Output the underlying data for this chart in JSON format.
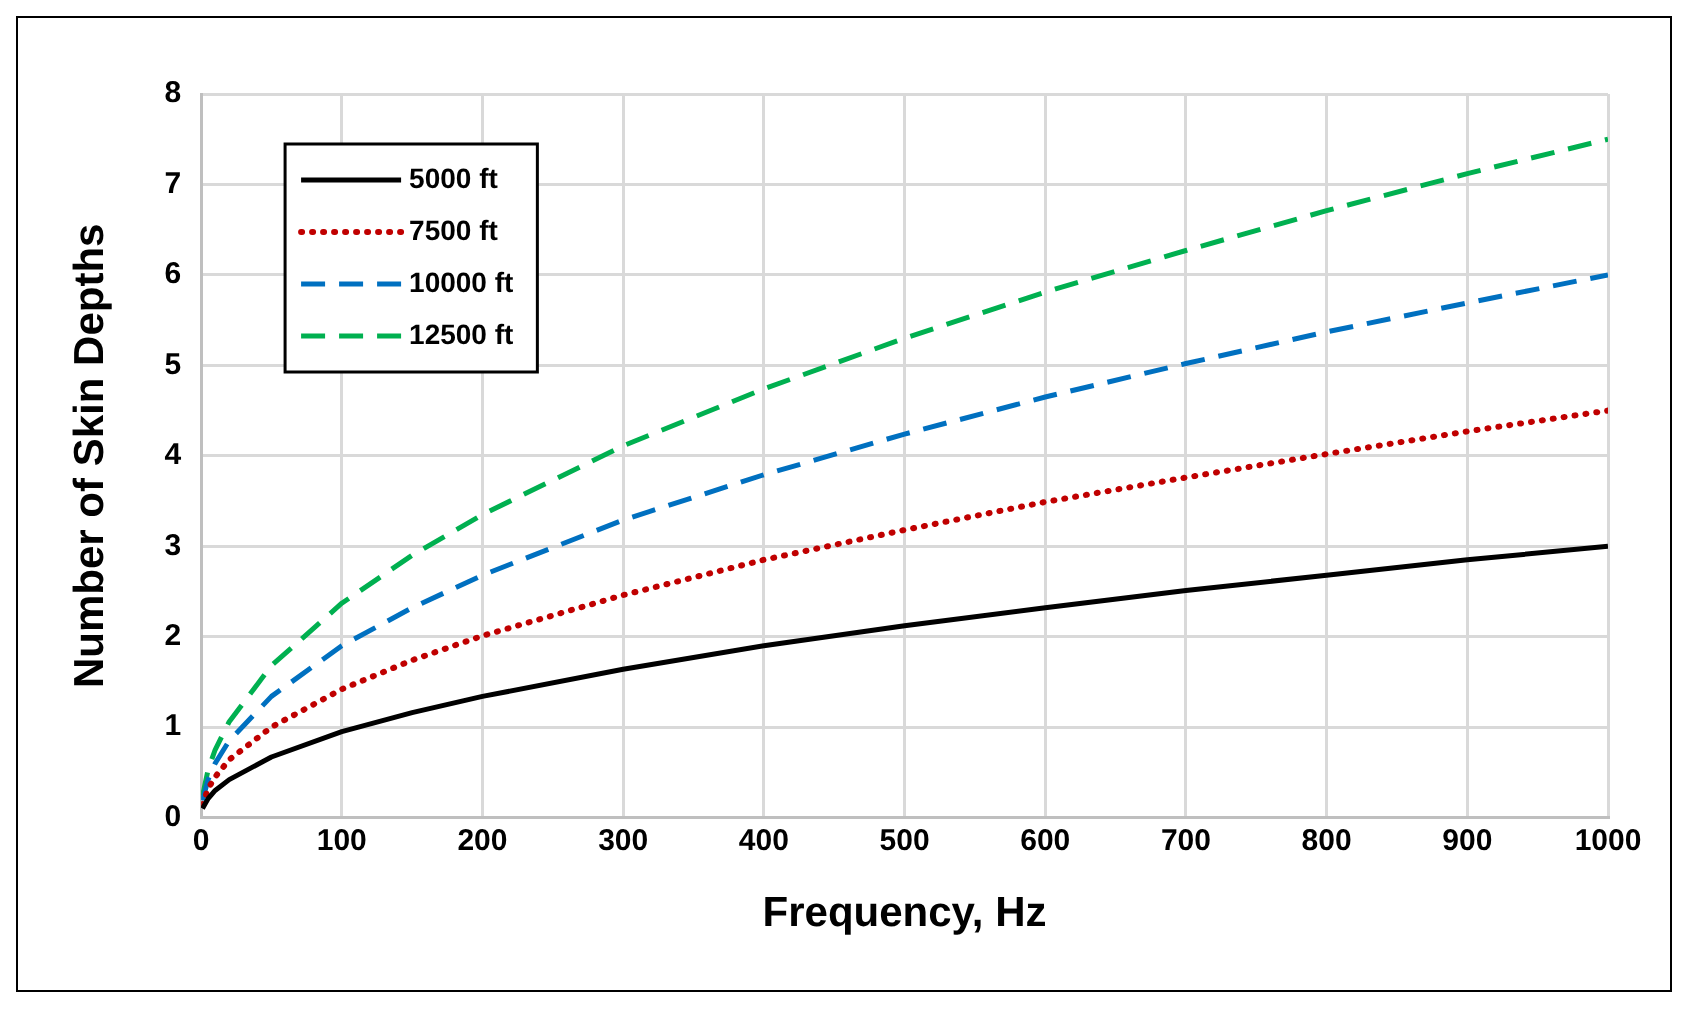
{
  "chart_data": {
    "type": "line",
    "xlabel": "Frequency, Hz",
    "ylabel": "Number of Skin Depths",
    "x": [
      1,
      5,
      10,
      20,
      50,
      100,
      150,
      200,
      300,
      400,
      500,
      600,
      700,
      800,
      900,
      1000
    ],
    "series": [
      {
        "name": "5000 ft",
        "color": "#000000",
        "line_style": "solid",
        "values": [
          0.1,
          0.21,
          0.3,
          0.42,
          0.67,
          0.95,
          1.16,
          1.34,
          1.64,
          1.9,
          2.12,
          2.32,
          2.51,
          2.68,
          2.85,
          3.0
        ]
      },
      {
        "name": "7500 ft",
        "color": "#c00000",
        "line_style": "dotted",
        "values": [
          0.14,
          0.32,
          0.45,
          0.64,
          1.0,
          1.42,
          1.74,
          2.01,
          2.46,
          2.85,
          3.18,
          3.49,
          3.76,
          4.02,
          4.27,
          4.5
        ]
      },
      {
        "name": "10000 ft",
        "color": "#0070c0",
        "line_style": "dashed",
        "values": [
          0.19,
          0.42,
          0.6,
          0.85,
          1.34,
          1.9,
          2.32,
          2.68,
          3.29,
          3.79,
          4.24,
          4.65,
          5.02,
          5.37,
          5.69,
          6.0
        ]
      },
      {
        "name": "12500 ft",
        "color": "#00b050",
        "line_style": "dashed",
        "values": [
          0.24,
          0.53,
          0.75,
          1.06,
          1.68,
          2.37,
          2.9,
          3.35,
          4.11,
          4.74,
          5.3,
          5.81,
          6.27,
          6.71,
          7.12,
          7.5
        ]
      }
    ],
    "xlim": [
      0,
      1000
    ],
    "xticks": [
      0,
      100,
      200,
      300,
      400,
      500,
      600,
      700,
      800,
      900,
      1000
    ],
    "ylim": [
      0,
      8
    ],
    "yticks": [
      0,
      1,
      2,
      3,
      4,
      5,
      6,
      7,
      8
    ],
    "grid": true,
    "legend": "top left",
    "marker": "none"
  }
}
